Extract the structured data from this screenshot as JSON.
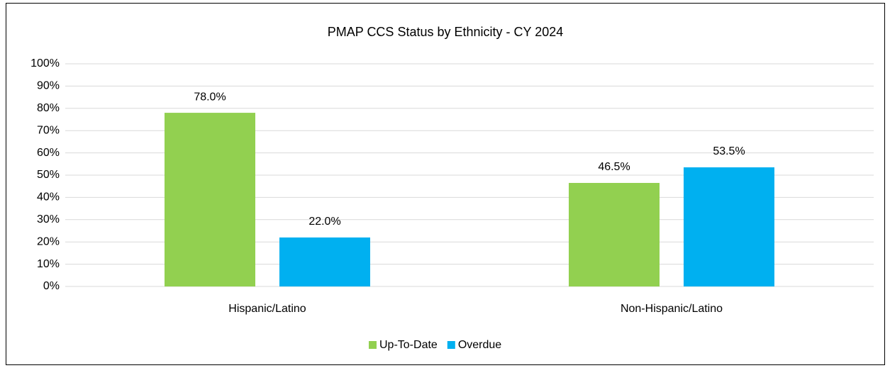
{
  "chart_data": {
    "type": "bar",
    "title": "PMAP CCS Status by Ethnicity - CY 2024",
    "categories": [
      "Hispanic/Latino",
      "Non-Hispanic/Latino"
    ],
    "series": [
      {
        "name": "Up-To-Date",
        "color": "#92d050",
        "values": [
          78.0,
          46.5
        ],
        "value_labels": [
          "78.0%",
          "46.5%"
        ]
      },
      {
        "name": "Overdue",
        "color": "#00b0f0",
        "values": [
          22.0,
          53.5
        ],
        "value_labels": [
          "22.0%",
          "53.5%"
        ]
      }
    ],
    "ylim": [
      0,
      100
    ],
    "yticks": [
      {
        "value": 0,
        "label": "0%"
      },
      {
        "value": 10,
        "label": "10%"
      },
      {
        "value": 20,
        "label": "20%"
      },
      {
        "value": 30,
        "label": "30%"
      },
      {
        "value": 40,
        "label": "40%"
      },
      {
        "value": 50,
        "label": "50%"
      },
      {
        "value": 60,
        "label": "60%"
      },
      {
        "value": 70,
        "label": "70%"
      },
      {
        "value": 80,
        "label": "80%"
      },
      {
        "value": 90,
        "label": "90%"
      },
      {
        "value": 100,
        "label": "100%"
      }
    ],
    "grid": true,
    "legend": "bottom"
  }
}
